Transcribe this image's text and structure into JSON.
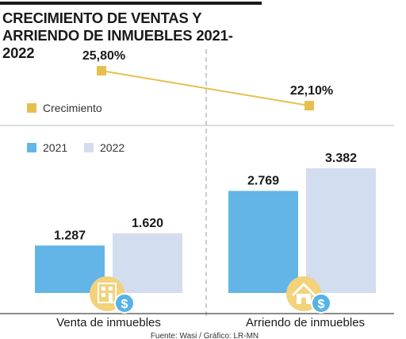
{
  "title": "CRECIMIENTO DE VENTAS Y ARRIENDO DE INMUEBLES 2021- 2022",
  "source": "Fuente: Wasi / Gráfico: LR-MN",
  "colors": {
    "series_2021": "#62b5e6",
    "series_2022": "#d3ddf0",
    "growth": "#e6c04e",
    "icon_badge": "#f2d27a",
    "dollar_badge": "#56b3e3"
  },
  "icons": [
    "building-icon",
    "dollar-icon",
    "house-icon",
    "dollar-icon"
  ],
  "chart_data": [
    {
      "type": "line",
      "categories": [
        "Venta de inmuebles",
        "Arriendo de inmuebles"
      ],
      "series": [
        {
          "name": "Crecimiento",
          "values": [
            25.8,
            22.1
          ],
          "labels": [
            "25,80%",
            "22,10%"
          ]
        }
      ]
    },
    {
      "type": "bar",
      "categories": [
        "Venta de inmuebles",
        "Arriendo de inmuebles"
      ],
      "series": [
        {
          "name": "2021",
          "values": [
            1287,
            2769
          ],
          "labels": [
            "1.287",
            "2.769"
          ]
        },
        {
          "name": "2022",
          "values": [
            1620,
            3382
          ],
          "labels": [
            "1.620",
            "3.382"
          ]
        }
      ],
      "ylim": [
        0,
        3382
      ]
    }
  ]
}
